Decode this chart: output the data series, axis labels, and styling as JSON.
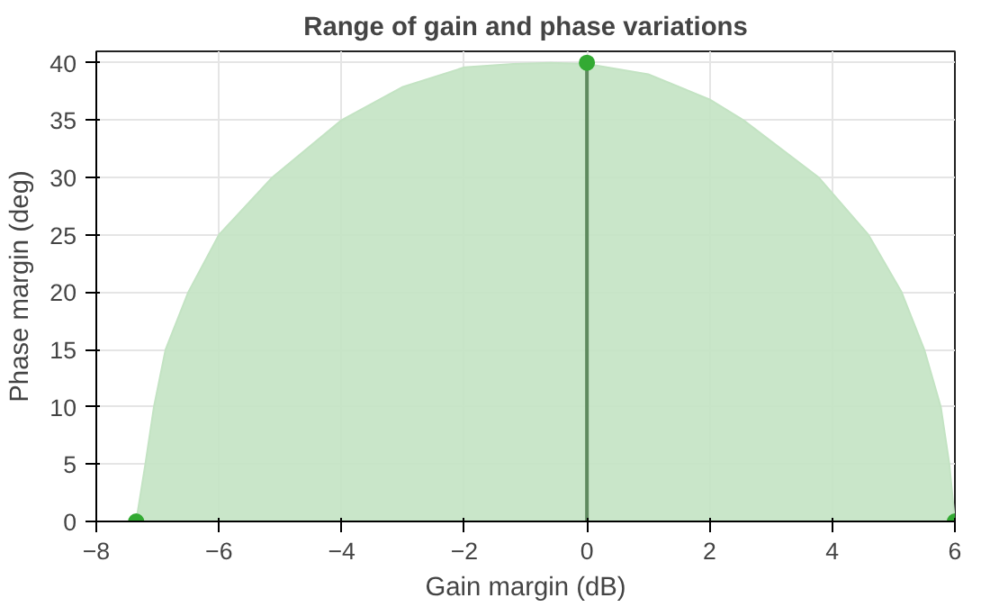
{
  "chart_data": {
    "type": "area",
    "title": "Range of gain and phase variations",
    "xlabel": "Gain margin (dB)",
    "ylabel": "Phase margin (deg)",
    "xlim": [
      -8,
      6
    ],
    "ylim": [
      0,
      41
    ],
    "xticks": [
      -8,
      -6,
      -4,
      -2,
      0,
      2,
      4,
      6
    ],
    "yticks": [
      0,
      5,
      10,
      15,
      20,
      25,
      30,
      35,
      40
    ],
    "grid": true,
    "series": [
      {
        "color": "#c3e3c3",
        "x": [
          -7.35,
          -7.2,
          -7.06,
          -6.87,
          -6.5,
          -6.0,
          -5.13,
          -4.0,
          -3.0,
          -2.0,
          -1.2,
          -0.6,
          0.0,
          1.0,
          2.0,
          2.55,
          3.78,
          4.59,
          5.13,
          5.5,
          5.77,
          5.91,
          6.0
        ],
        "values": [
          0,
          5,
          10,
          15,
          20,
          25,
          30,
          35,
          37.9,
          39.6,
          39.9,
          40,
          39.9,
          39.0,
          36.8,
          35,
          30,
          25,
          20,
          15,
          10,
          5,
          0
        ]
      },
      {
        "type": "line",
        "color": "#5f8a5f",
        "x": [
          0,
          0
        ],
        "values": [
          0,
          40
        ]
      },
      {
        "type": "scatter",
        "color": "#33aa33",
        "marker": "circle",
        "x": [
          -7.35,
          0,
          6
        ],
        "values": [
          0,
          40,
          0
        ]
      }
    ]
  }
}
